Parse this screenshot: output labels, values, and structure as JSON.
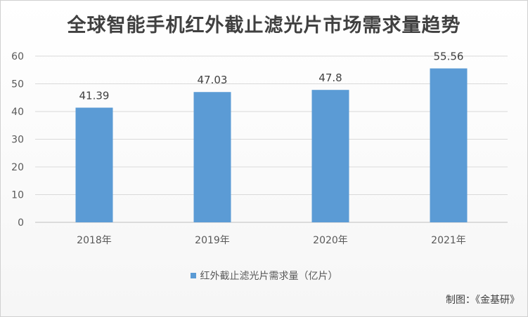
{
  "chart_data": {
    "type": "bar",
    "title": "全球智能手机红外截止滤光片市场需求量趋势",
    "categories": [
      "2018年",
      "2019年",
      "2020年",
      "2021年"
    ],
    "series": [
      {
        "name": "红外截止滤光片需求量（亿片）",
        "values": [
          41.39,
          47.03,
          47.8,
          55.56
        ],
        "data_labels": [
          "41.39",
          "47.03",
          "47.8",
          "55.56"
        ],
        "color": "#5b9bd5"
      }
    ],
    "ylim": [
      0,
      60
    ],
    "yticks": [
      "0",
      "10",
      "20",
      "30",
      "40",
      "50",
      "60"
    ],
    "grid": true,
    "legend_position": "bottom"
  },
  "source_note": "制图：《金基研》"
}
